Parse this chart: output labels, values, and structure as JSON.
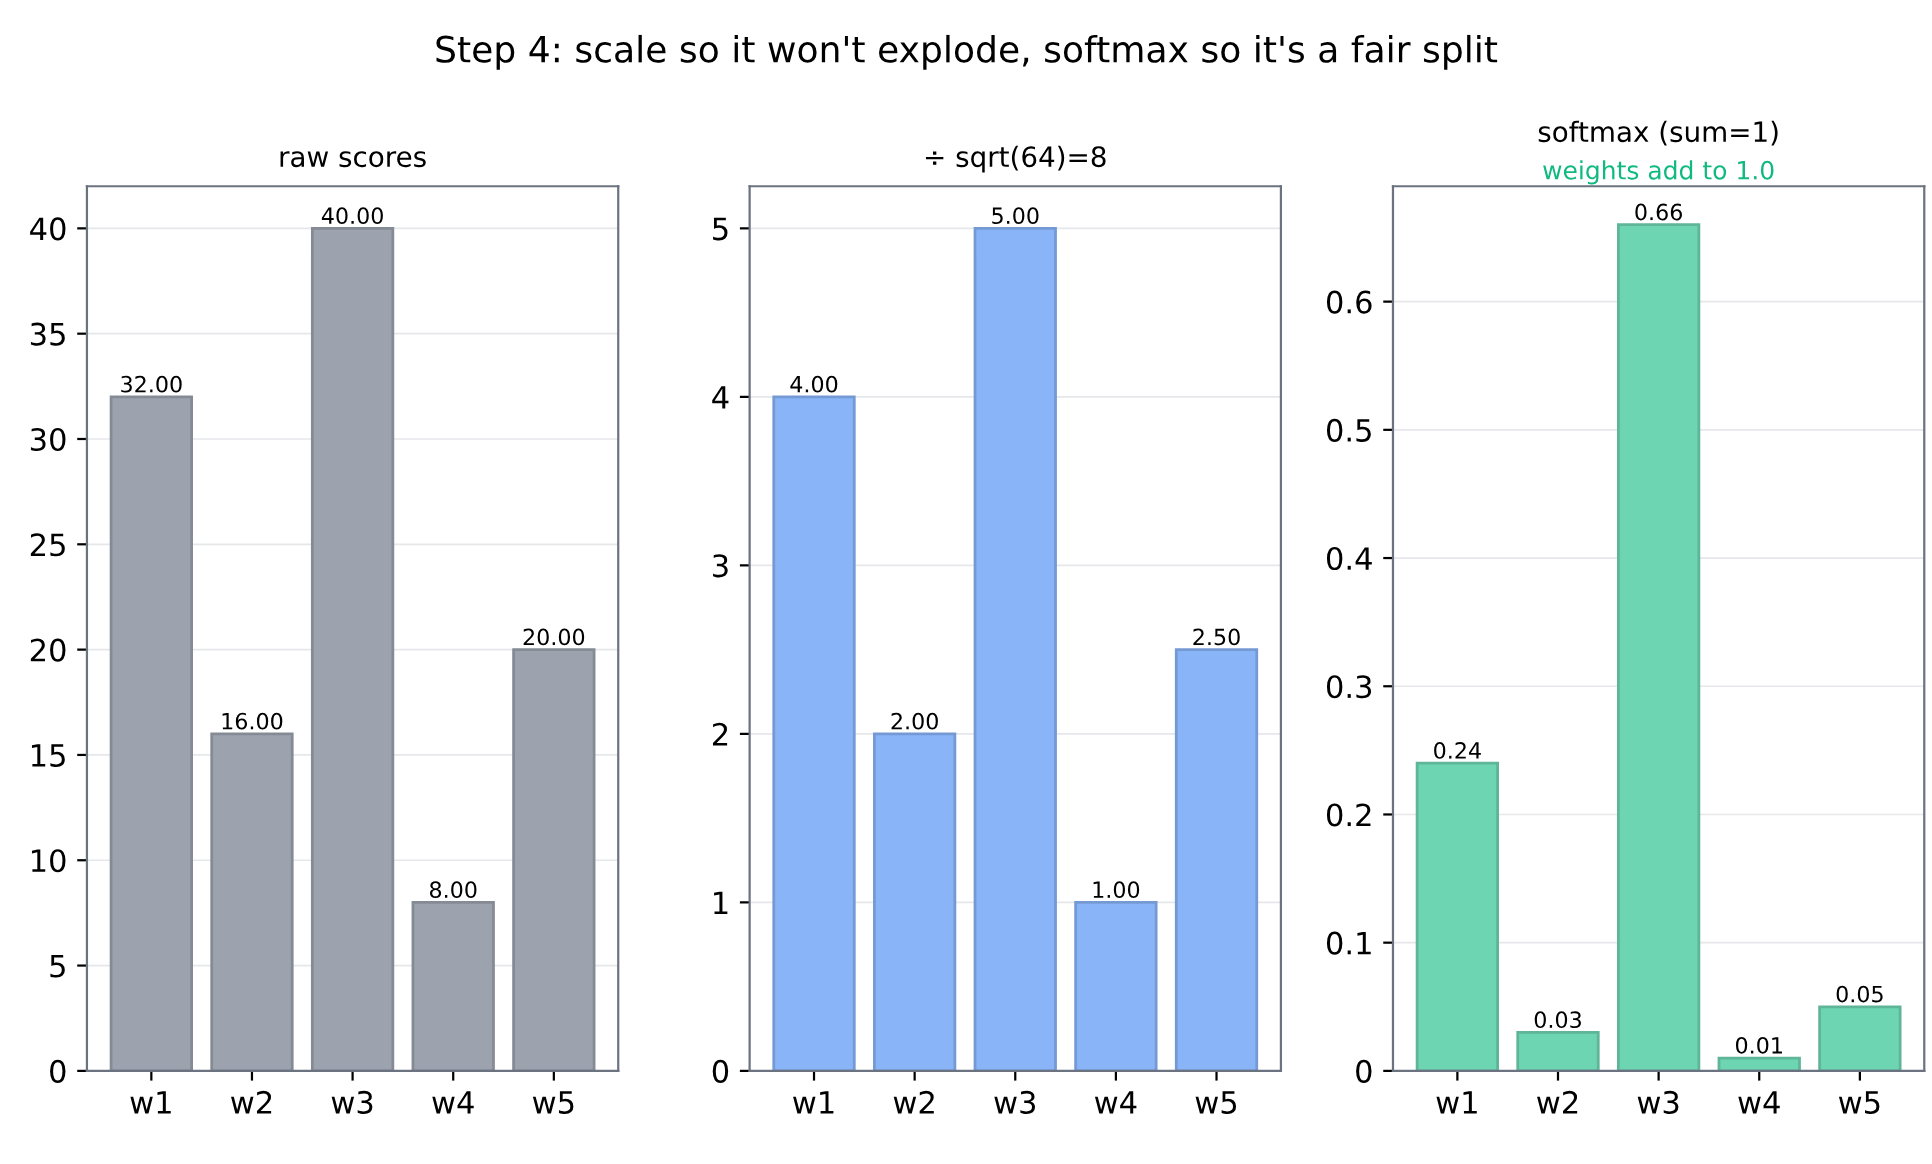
{
  "chart_data": [
    {
      "type": "bar",
      "title": "raw scores",
      "annotations": [
        "Step 4: scale so it won't explode, softmax so it's a fair split"
      ],
      "categories": [
        "w1",
        "w2",
        "w3",
        "w4",
        "w5"
      ],
      "values": [
        32,
        16,
        40,
        8,
        20
      ],
      "value_labels": [
        "32.00",
        "16.00",
        "40.00",
        "8.00",
        "20.00"
      ],
      "color": "#9ca3af",
      "ylim": [
        0,
        42
      ],
      "yticks": [
        0,
        5,
        10,
        15,
        20,
        25,
        30,
        35,
        40
      ],
      "grid": "y"
    },
    {
      "type": "bar",
      "title": "÷ sqrt(64)=8",
      "categories": [
        "w1",
        "w2",
        "w3",
        "w4",
        "w5"
      ],
      "values": [
        4,
        2,
        5,
        1,
        2.5
      ],
      "value_labels": [
        "4.00",
        "2.00",
        "5.00",
        "1.00",
        "2.50"
      ],
      "color": "#8ab4f8",
      "ylim": [
        0,
        5.25
      ],
      "yticks": [
        0,
        1,
        2,
        3,
        4,
        5
      ],
      "grid": "y"
    },
    {
      "type": "bar",
      "title": "softmax (sum=1)",
      "annotations": [
        "weights add to 1.0"
      ],
      "categories": [
        "w1",
        "w2",
        "w3",
        "w4",
        "w5"
      ],
      "values": [
        0.24,
        0.03,
        0.66,
        0.01,
        0.05
      ],
      "value_labels": [
        "0.24",
        "0.03",
        "0.66",
        "0.01",
        "0.05"
      ],
      "color": "#6ed5b2",
      "ylim": [
        0,
        0.69
      ],
      "yticks": [
        0,
        0.1,
        0.2,
        0.3,
        0.4,
        0.5,
        0.6
      ],
      "grid": "y"
    }
  ]
}
